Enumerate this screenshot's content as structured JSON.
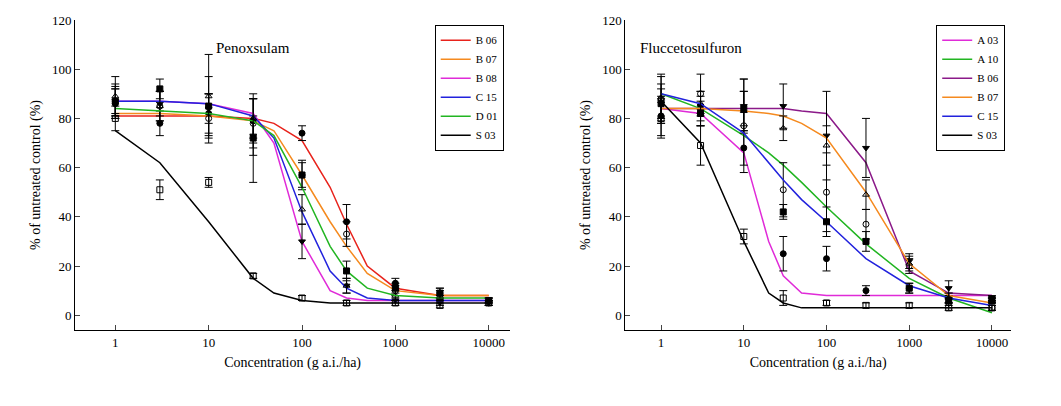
{
  "chart_data": [
    {
      "type": "scatter",
      "title": "Penoxsulam",
      "x_label": "Concentration (g a.i./ha)",
      "y_label": "% of untreated control (%)",
      "log": "x",
      "grid": false,
      "legend": "upper right",
      "xlim": [
        0.37,
        17000
      ],
      "ylim": [
        -6,
        120
      ],
      "xticks": [
        1,
        10,
        100,
        1000,
        10000
      ],
      "yticks": [
        0,
        20,
        40,
        60,
        80,
        100,
        120
      ],
      "series": [
        {
          "name": "B 06",
          "color": "#e8231c",
          "marker": "circle",
          "x": [
            1,
            3,
            10,
            30,
            100,
            300,
            1000,
            3000,
            10000
          ],
          "values": [
            86,
            78,
            82,
            79,
            74,
            38,
            13,
            9,
            6
          ],
          "error": [
            6,
            5,
            8,
            9,
            3,
            7,
            2,
            2,
            1
          ],
          "curve_x": [
            1,
            3,
            10,
            30,
            50,
            100,
            200,
            300,
            500,
            1000,
            3000,
            10000
          ],
          "curve_values": [
            81,
            81,
            81,
            80,
            78,
            71,
            52,
            37,
            20,
            11,
            8,
            8
          ]
        },
        {
          "name": "B 07",
          "color": "#f58a1f",
          "marker": "circle-open",
          "x": [
            1,
            3,
            10,
            30,
            100,
            300,
            1000,
            3000,
            10000
          ],
          "values": [
            87,
            85,
            80,
            78,
            57,
            33,
            10,
            8,
            5
          ],
          "error": [
            5,
            6,
            10,
            10,
            6,
            5,
            2,
            2,
            1
          ],
          "curve_x": [
            1,
            3,
            10,
            30,
            50,
            100,
            200,
            300,
            500,
            1000,
            3000,
            10000
          ],
          "curve_values": [
            82,
            82,
            81,
            79,
            75,
            57,
            38,
            28,
            17,
            10,
            8,
            8
          ]
        },
        {
          "name": "B 08",
          "color": "#e02bd8",
          "marker": "triangle-down",
          "x": [
            1,
            3,
            10,
            30,
            100,
            300,
            1000,
            3000,
            10000
          ],
          "values": [
            87,
            86,
            84,
            73,
            30,
            12,
            6,
            5,
            5
          ],
          "error": [
            6,
            5,
            6,
            8,
            7,
            3,
            1,
            1,
            1
          ],
          "curve_x": [
            1,
            3,
            10,
            30,
            50,
            100,
            200,
            300,
            500,
            1000,
            3000,
            10000
          ],
          "curve_values": [
            87,
            87,
            86,
            82,
            70,
            30,
            10,
            7,
            6,
            6,
            6,
            6
          ]
        },
        {
          "name": "C 15",
          "color": "#2222dd",
          "marker": "triangle-up-open",
          "x": [
            1,
            3,
            10,
            30,
            100,
            300,
            1000,
            3000,
            10000
          ],
          "values": [
            89,
            85,
            89,
            80,
            43,
            12,
            8,
            7,
            6
          ],
          "error": [
            8,
            6,
            17,
            8,
            6,
            3,
            2,
            1,
            1
          ],
          "curve_x": [
            1,
            3,
            10,
            30,
            50,
            100,
            200,
            300,
            500,
            1000,
            3000,
            10000
          ],
          "curve_values": [
            87,
            87,
            86,
            81,
            72,
            42,
            18,
            11,
            7,
            6,
            6,
            6
          ]
        },
        {
          "name": "D 01",
          "color": "#22b522",
          "marker": "square",
          "x": [
            1,
            3,
            10,
            30,
            100,
            300,
            1000,
            3000,
            10000
          ],
          "values": [
            87,
            92,
            85,
            72,
            57,
            18,
            11,
            9,
            6
          ],
          "error": [
            7,
            4,
            12,
            18,
            5,
            4,
            2,
            2,
            1
          ],
          "curve_x": [
            1,
            3,
            10,
            30,
            50,
            100,
            200,
            300,
            500,
            1000,
            3000,
            10000
          ],
          "curve_values": [
            84,
            83,
            82,
            79,
            73,
            52,
            28,
            18,
            11,
            8,
            7,
            7
          ]
        },
        {
          "name": "S 03",
          "color": "#000000",
          "marker": "square-open",
          "x": [
            1,
            3,
            10,
            30,
            100,
            300,
            1000,
            3000,
            10000
          ],
          "values": [
            80,
            51,
            54,
            16,
            7,
            5,
            5,
            4,
            5
          ],
          "error": [
            5,
            4,
            2,
            1,
            1,
            1,
            1,
            1,
            1
          ],
          "curve_x": [
            1,
            3,
            10,
            30,
            50,
            100,
            200,
            300,
            500,
            1000,
            3000,
            10000
          ],
          "curve_values": [
            75,
            62,
            38,
            15,
            9,
            6,
            5,
            5,
            5,
            5,
            5,
            5
          ]
        }
      ]
    },
    {
      "type": "scatter",
      "title": "Fluccetosulfuron",
      "x_label": "Concentration (g a.i./ha)",
      "y_label": "% of untreated control (%)",
      "log": "x",
      "grid": false,
      "legend": "upper right",
      "xlim": [
        0.37,
        17000
      ],
      "ylim": [
        -6,
        120
      ],
      "xticks": [
        1,
        10,
        100,
        1000,
        10000
      ],
      "yticks": [
        0,
        20,
        40,
        60,
        80,
        100,
        120
      ],
      "series": [
        {
          "name": "A 03",
          "color": "#e02bd8",
          "marker": "circle",
          "x": [
            1,
            3,
            10,
            30,
            100,
            300,
            1000,
            3000,
            10000
          ],
          "values": [
            81,
            85,
            68,
            25,
            23,
            10,
            11,
            7,
            6
          ],
          "error": [
            8,
            6,
            7,
            7,
            5,
            2,
            2,
            2,
            1
          ],
          "curve_x": [
            1,
            3,
            10,
            20,
            30,
            50,
            100,
            300,
            1000,
            3000,
            10000
          ],
          "curve_values": [
            84,
            82,
            66,
            30,
            16,
            9,
            8,
            8,
            8,
            8,
            8
          ]
        },
        {
          "name": "A 10",
          "color": "#22b522",
          "marker": "circle-open",
          "x": [
            1,
            3,
            10,
            30,
            100,
            300,
            1000,
            3000,
            10000
          ],
          "values": [
            88,
            90,
            77,
            51,
            50,
            37,
            20,
            5,
            3
          ],
          "error": [
            10,
            8,
            19,
            11,
            16,
            6,
            3,
            2,
            1
          ],
          "curve_x": [
            1,
            3,
            10,
            20,
            30,
            50,
            100,
            300,
            1000,
            3000,
            10000
          ],
          "curve_values": [
            90,
            84,
            73,
            66,
            61,
            54,
            44,
            29,
            15,
            7,
            1
          ]
        },
        {
          "name": "B 06",
          "color": "#8b1a89",
          "marker": "triangle-down",
          "x": [
            1,
            3,
            10,
            30,
            100,
            300,
            1000,
            3000,
            10000
          ],
          "values": [
            86,
            83,
            85,
            85,
            73,
            68,
            22,
            11,
            7
          ],
          "error": [
            8,
            6,
            11,
            9,
            18,
            12,
            3,
            3,
            1
          ],
          "curve_x": [
            1,
            3,
            10,
            20,
            30,
            50,
            100,
            300,
            1000,
            3000,
            10000
          ],
          "curve_values": [
            84,
            84,
            84,
            84,
            84,
            83,
            82,
            62,
            18,
            9,
            8
          ]
        },
        {
          "name": "B 07",
          "color": "#f58a1f",
          "marker": "triangle-up-open",
          "x": [
            1,
            3,
            10,
            30,
            100,
            300,
            1000,
            3000,
            10000
          ],
          "values": [
            88,
            86,
            83,
            76,
            69,
            49,
            21,
            7,
            6
          ],
          "error": [
            9,
            5,
            8,
            5,
            8,
            6,
            3,
            2,
            1
          ],
          "curve_x": [
            1,
            3,
            10,
            20,
            30,
            50,
            100,
            300,
            1000,
            3000,
            10000
          ],
          "curve_values": [
            84,
            84,
            83,
            82,
            81,
            78,
            72,
            50,
            21,
            8,
            5
          ]
        },
        {
          "name": "C 15",
          "color": "#2222dd",
          "marker": "square",
          "x": [
            1,
            3,
            10,
            30,
            100,
            300,
            1000,
            3000,
            10000
          ],
          "values": [
            86,
            82,
            84,
            42,
            38,
            30,
            11,
            6,
            6
          ],
          "error": [
            6,
            5,
            7,
            3,
            6,
            4,
            2,
            1,
            1
          ],
          "curve_x": [
            1,
            3,
            10,
            20,
            30,
            50,
            100,
            300,
            1000,
            3000,
            10000
          ],
          "curve_values": [
            90,
            86,
            74,
            62,
            55,
            47,
            38,
            23,
            12,
            7,
            4
          ]
        },
        {
          "name": "S 03",
          "color": "#000000",
          "marker": "square-open",
          "x": [
            1,
            3,
            10,
            30,
            100,
            300,
            1000,
            3000,
            10000
          ],
          "values": [
            80,
            69,
            32,
            7,
            5,
            4,
            4,
            3,
            3
          ],
          "error": [
            8,
            8,
            3,
            3,
            1,
            1,
            1,
            1,
            1
          ],
          "curve_x": [
            1,
            3,
            10,
            20,
            30,
            50,
            100,
            300,
            1000,
            3000,
            10000
          ],
          "curve_values": [
            87,
            70,
            30,
            9,
            5,
            3,
            3,
            3,
            3,
            3,
            3
          ]
        }
      ]
    }
  ]
}
